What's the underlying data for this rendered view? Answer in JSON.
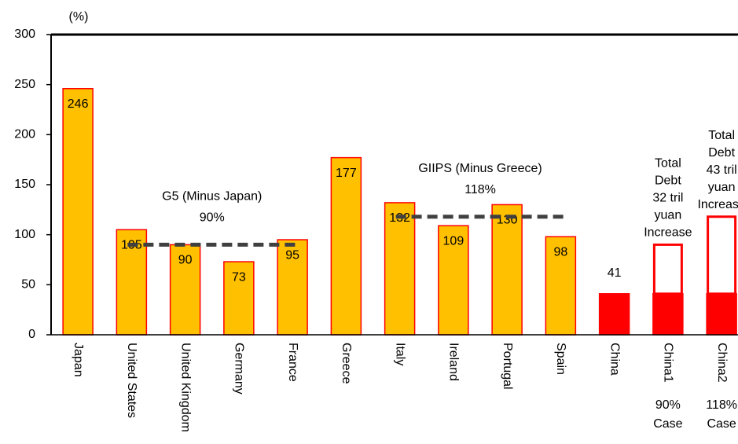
{
  "chart_data": {
    "type": "bar",
    "y_unit": "(%)",
    "categories": [
      "Japan",
      "United States",
      "United Kingdom",
      "Germany",
      "France",
      "Greece",
      "Italy",
      "Ireland",
      "Portugal",
      "Spain",
      "China",
      "China1",
      "China2"
    ],
    "category_sublabels": [
      null,
      null,
      null,
      null,
      null,
      null,
      null,
      null,
      null,
      null,
      null,
      [
        "90%",
        "Case"
      ],
      [
        "118%",
        "Case"
      ]
    ],
    "values": [
      246,
      105,
      90,
      73,
      95,
      177,
      132,
      109,
      130,
      98,
      41,
      41,
      41
    ],
    "colors": [
      "#ffc000",
      "#ffc000",
      "#ffc000",
      "#ffc000",
      "#ffc000",
      "#ffc000",
      "#ffc000",
      "#ffc000",
      "#ffc000",
      "#ffc000",
      "#ff0000",
      "#ff0000",
      "#ff0000"
    ],
    "increase_values": [
      null,
      null,
      null,
      null,
      null,
      null,
      null,
      null,
      null,
      null,
      null,
      49,
      77
    ],
    "increase_color": "#ffffff",
    "outline_color": "#ff0000",
    "increase_annotations": [
      null,
      null,
      null,
      null,
      null,
      null,
      null,
      null,
      null,
      null,
      null,
      [
        "Total",
        "Debt",
        "32 tril",
        "yuan",
        "Increase"
      ],
      [
        "Total",
        "Debt",
        "43 tril",
        "yuan",
        "Increase"
      ]
    ],
    "reference_lines": [
      {
        "label": "G5 (Minus Japan)",
        "value_label": "90%",
        "value": 90,
        "from": "United States",
        "to": "France",
        "color": "#404040"
      },
      {
        "label": "GIIPS (Minus Greece)",
        "value_label": "118%",
        "value": 118,
        "from": "Italy",
        "to": "Spain",
        "color": "#404040"
      }
    ],
    "ylim": [
      0,
      300
    ],
    "yticks": [
      0,
      50,
      100,
      150,
      200,
      250,
      300
    ],
    "grid": false
  }
}
